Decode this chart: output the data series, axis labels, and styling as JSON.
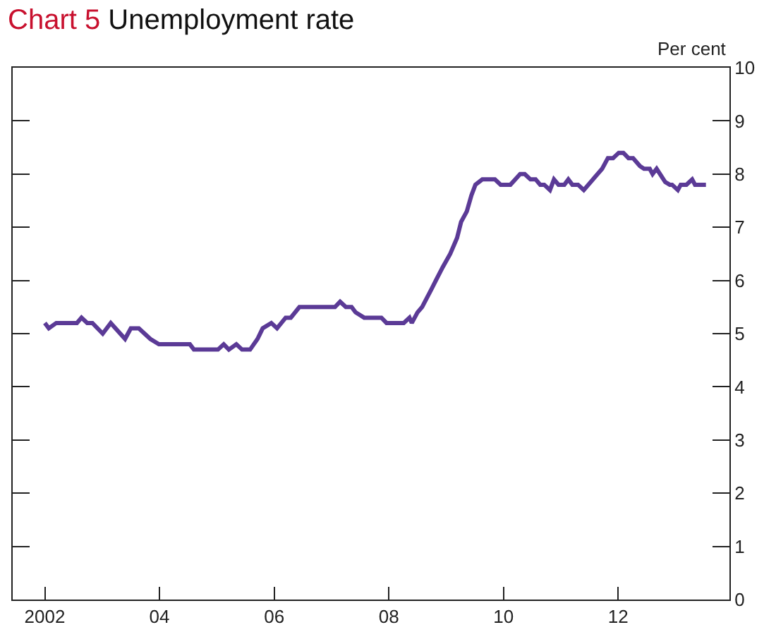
{
  "chart_data": {
    "type": "line",
    "title": "Chart 5 Unemployment rate",
    "ylabel": "Per cent",
    "x": [
      2002.0,
      2002.07,
      2002.2,
      2002.56,
      2002.64,
      2002.74,
      2002.83,
      2003.01,
      2003.15,
      2003.4,
      2003.5,
      2003.64,
      2003.84,
      2003.99,
      2004.53,
      2004.6,
      2005.02,
      2005.12,
      2005.21,
      2005.34,
      2005.44,
      2005.58,
      2005.71,
      2005.8,
      2005.95,
      2006.05,
      2006.2,
      2006.29,
      2006.44,
      2007.06,
      2007.15,
      2007.25,
      2007.35,
      2007.42,
      2007.57,
      2007.87,
      2007.96,
      2008.26,
      2008.36,
      2008.4,
      2008.5,
      2008.58,
      2008.75,
      2008.82,
      2008.94,
      2009.07,
      2009.19,
      2009.26,
      2009.36,
      2009.44,
      2009.51,
      2009.63,
      2009.85,
      2009.95,
      2010.12,
      2010.29,
      2010.37,
      2010.47,
      2010.56,
      2010.64,
      2010.71,
      2010.81,
      2010.88,
      2010.96,
      2011.06,
      2011.13,
      2011.2,
      2011.3,
      2011.4,
      2011.6,
      2011.72,
      2011.82,
      2011.91,
      2012.01,
      2012.09,
      2012.18,
      2012.26,
      2012.38,
      2012.45,
      2012.55,
      2012.6,
      2012.67,
      2012.82,
      2012.9,
      2012.94,
      2013.04,
      2013.09,
      2013.19,
      2013.29,
      2013.34,
      2013.53
    ],
    "series": [
      {
        "color": "#5b3a96",
        "values": [
          5.2,
          5.1,
          5.2,
          5.2,
          5.3,
          5.2,
          5.2,
          5.0,
          5.2,
          4.9,
          5.1,
          5.1,
          4.9,
          4.8,
          4.8,
          4.7,
          4.7,
          4.8,
          4.7,
          4.8,
          4.7,
          4.7,
          4.9,
          5.1,
          5.2,
          5.1,
          5.3,
          5.3,
          5.5,
          5.5,
          5.6,
          5.5,
          5.5,
          5.4,
          5.3,
          5.3,
          5.2,
          5.2,
          5.3,
          5.2,
          5.4,
          5.5,
          5.85,
          6.0,
          6.25,
          6.5,
          6.8,
          7.1,
          7.3,
          7.6,
          7.8,
          7.9,
          7.9,
          7.8,
          7.8,
          8.0,
          8.0,
          7.9,
          7.9,
          7.8,
          7.8,
          7.7,
          7.9,
          7.8,
          7.8,
          7.9,
          7.8,
          7.8,
          7.7,
          7.95,
          8.1,
          8.3,
          8.3,
          8.4,
          8.4,
          8.3,
          8.3,
          8.15,
          8.1,
          8.1,
          8.0,
          8.1,
          7.85,
          7.8,
          7.8,
          7.7,
          7.8,
          7.8,
          7.9,
          7.8,
          7.8
        ]
      }
    ],
    "xlim": [
      2001.44,
      2013.94
    ],
    "xticks": [
      {
        "value": 2002,
        "label": "2002"
      },
      {
        "value": 2004,
        "label": "04"
      },
      {
        "value": 2006,
        "label": "06"
      },
      {
        "value": 2008,
        "label": "08"
      },
      {
        "value": 2010,
        "label": "10"
      },
      {
        "value": 2012,
        "label": "12"
      }
    ],
    "ylim": [
      0,
      10
    ],
    "yticks": [
      0,
      1,
      2,
      3,
      4,
      5,
      6,
      7,
      8,
      9,
      10
    ],
    "grid": false,
    "marker": "none",
    "line_style": "solid"
  }
}
